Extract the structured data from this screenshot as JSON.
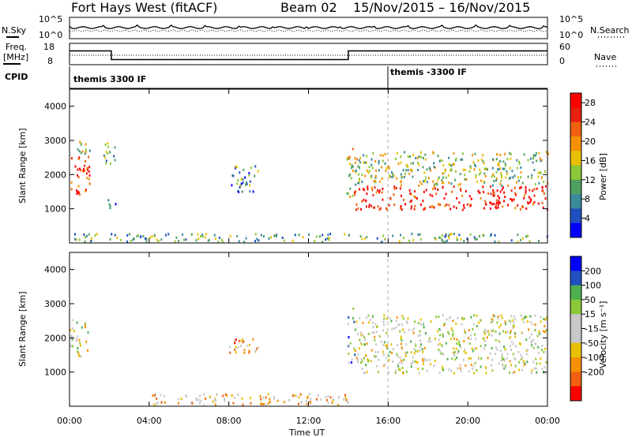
{
  "header": {
    "station": "Fort Hays West (fitACF)",
    "beam": "Beam 02",
    "dates": "15/Nov/2015 – 16/Nov/2015"
  },
  "noise_panel": {
    "left_label": "N.Sky",
    "right_label": "N.Search",
    "left_ticks": [
      "10^5",
      "10^0"
    ],
    "right_ticks": [
      "10^5",
      "10^0"
    ]
  },
  "freq_panel": {
    "left_label_1": "Freq.",
    "left_label_2": "[MHz]",
    "right_label": "Nave",
    "left_ticks": [
      "18",
      "8"
    ],
    "right_ticks": [
      "60",
      "0"
    ],
    "freq_segments": [
      {
        "t0": 0.0,
        "t1": 2.1,
        "freq": 14.5
      },
      {
        "t0": 2.1,
        "t1": 14.0,
        "freq": 10.4
      },
      {
        "t0": 14.0,
        "t1": 24.0,
        "freq": 14.5
      }
    ]
  },
  "cpid": {
    "label": "CPID",
    "segments": [
      {
        "t": 0.0,
        "text": "themis 3300 IF"
      },
      {
        "t": 16.0,
        "text": "themis -3300 IF"
      }
    ]
  },
  "chart_data": [
    {
      "type": "heatmap",
      "name": "power",
      "ylabel": "Slant Range [km]",
      "yticks": [
        1000,
        2000,
        3000,
        4000
      ],
      "ylim": [
        0,
        4500
      ],
      "xlim": [
        0,
        24
      ],
      "colorbar_label": "Power [dB]",
      "colorbar_ticks": [
        4,
        8,
        12,
        16,
        20,
        24,
        28
      ],
      "colorbar_range": [
        0,
        30
      ],
      "colors": [
        "#0000ff",
        "#2050c0",
        "#3a8a9a",
        "#4fa060",
        "#8cc838",
        "#e8c000",
        "#f59000",
        "#f06010",
        "#e82010",
        "#ff0000"
      ],
      "regions": [
        {
          "t0": 0.05,
          "t1": 1.0,
          "r0": 1450,
          "r1": 2600,
          "level": 0.85
        },
        {
          "t0": 0.3,
          "t1": 1.0,
          "r0": 2600,
          "r1": 3000,
          "level": 0.45
        },
        {
          "t0": 1.7,
          "t1": 2.3,
          "r0": 2300,
          "r1": 3000,
          "level": 0.4
        },
        {
          "t0": 1.9,
          "t1": 2.3,
          "r0": 1000,
          "r1": 1300,
          "level": 0.25
        },
        {
          "t0": 8.0,
          "t1": 9.5,
          "r0": 1500,
          "r1": 2300,
          "level": 0.3
        },
        {
          "t0": 13.9,
          "t1": 14.4,
          "r0": 1300,
          "r1": 2900,
          "level": 0.55
        },
        {
          "t0": 14.2,
          "t1": 24.0,
          "r0": 1000,
          "r1": 1700,
          "level": 0.92
        },
        {
          "t0": 14.3,
          "t1": 24.0,
          "r0": 1700,
          "r1": 2700,
          "level": 0.45
        },
        {
          "t0": 0.0,
          "t1": 24.0,
          "r0": 60,
          "r1": 300,
          "level": 0.35
        }
      ]
    },
    {
      "type": "heatmap",
      "name": "velocity",
      "ylabel": "Slant Range [km]",
      "yticks": [
        1000,
        2000,
        3000,
        4000
      ],
      "ylim": [
        0,
        4500
      ],
      "xlim": [
        0,
        24
      ],
      "colorbar_label": "Velocity [m s⁻¹]",
      "colorbar_ticks": [
        200,
        100,
        50,
        15,
        -15,
        -50,
        -100,
        -200
      ],
      "colors": [
        "#ff0000",
        "#f06010",
        "#f59000",
        "#e8c000",
        "#c8c8c8",
        "#c8c8c8",
        "#8cc838",
        "#4fb050",
        "#2050c0",
        "#0000ff"
      ],
      "regions": [
        {
          "t0": 0.0,
          "t1": 0.9,
          "r0": 1450,
          "r1": 2600,
          "level": 0.5
        },
        {
          "t0": 8.0,
          "t1": 9.5,
          "r0": 1500,
          "r1": 2000,
          "level": 0.3
        },
        {
          "t0": 13.9,
          "t1": 14.3,
          "r0": 1300,
          "r1": 2900,
          "level": 0.7
        },
        {
          "t0": 14.3,
          "t1": 24.0,
          "r0": 1000,
          "r1": 1800,
          "level": 0.5
        },
        {
          "t0": 14.3,
          "t1": 24.0,
          "r0": 1800,
          "r1": 2700,
          "level": 0.5
        },
        {
          "t0": 4.0,
          "t1": 14.0,
          "r0": 60,
          "r1": 400,
          "level": 0.35
        }
      ]
    }
  ],
  "xaxis": {
    "label": "Time UT",
    "ticks": [
      "00:00",
      "04:00",
      "08:00",
      "12:00",
      "16:00",
      "20:00",
      "00:00"
    ]
  }
}
